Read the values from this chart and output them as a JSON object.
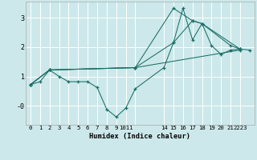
{
  "xlabel": "Humidex (Indice chaleur)",
  "bg_color": "#cce8ea",
  "grid_color": "#ffffff",
  "line_color": "#1a6e66",
  "xlim": [
    -0.5,
    23.5
  ],
  "ylim": [
    -0.65,
    3.55
  ],
  "ytick_positions": [
    0,
    1,
    2,
    3
  ],
  "ytick_labels": [
    "-0",
    "1",
    "2",
    "3"
  ],
  "xtick_positions": [
    0,
    1,
    2,
    3,
    4,
    5,
    6,
    7,
    8,
    9,
    10,
    11,
    14,
    15,
    16,
    17,
    18,
    19,
    20,
    21,
    22
  ],
  "xtick_labels": [
    "0",
    "1",
    "2",
    "3",
    "4",
    "5",
    "6",
    "7",
    "8",
    "9",
    "1011",
    "",
    "14",
    "15",
    "16",
    "17",
    "18",
    "19",
    "20",
    "21",
    "2223"
  ],
  "series": [
    {
      "x": [
        0,
        1,
        2,
        3,
        4,
        5,
        6,
        7,
        8,
        9,
        10,
        11,
        14,
        15,
        16,
        17,
        18,
        19,
        20,
        21,
        22,
        23
      ],
      "y": [
        0.72,
        0.82,
        1.22,
        1.0,
        0.82,
        0.82,
        0.82,
        0.62,
        -0.12,
        -0.38,
        -0.08,
        0.58,
        1.3,
        2.15,
        3.32,
        2.25,
        2.8,
        2.05,
        1.75,
        1.9,
        1.93,
        1.9
      ]
    },
    {
      "x": [
        0,
        2,
        11,
        15,
        17,
        18,
        21,
        22
      ],
      "y": [
        0.72,
        1.22,
        1.3,
        3.32,
        2.9,
        2.8,
        2.05,
        1.93
      ]
    },
    {
      "x": [
        0,
        2,
        11,
        15,
        17,
        18,
        22
      ],
      "y": [
        0.72,
        1.22,
        1.3,
        2.15,
        2.9,
        2.8,
        1.93
      ]
    },
    {
      "x": [
        0,
        2,
        11,
        22
      ],
      "y": [
        0.72,
        1.22,
        1.3,
        1.9
      ]
    }
  ]
}
